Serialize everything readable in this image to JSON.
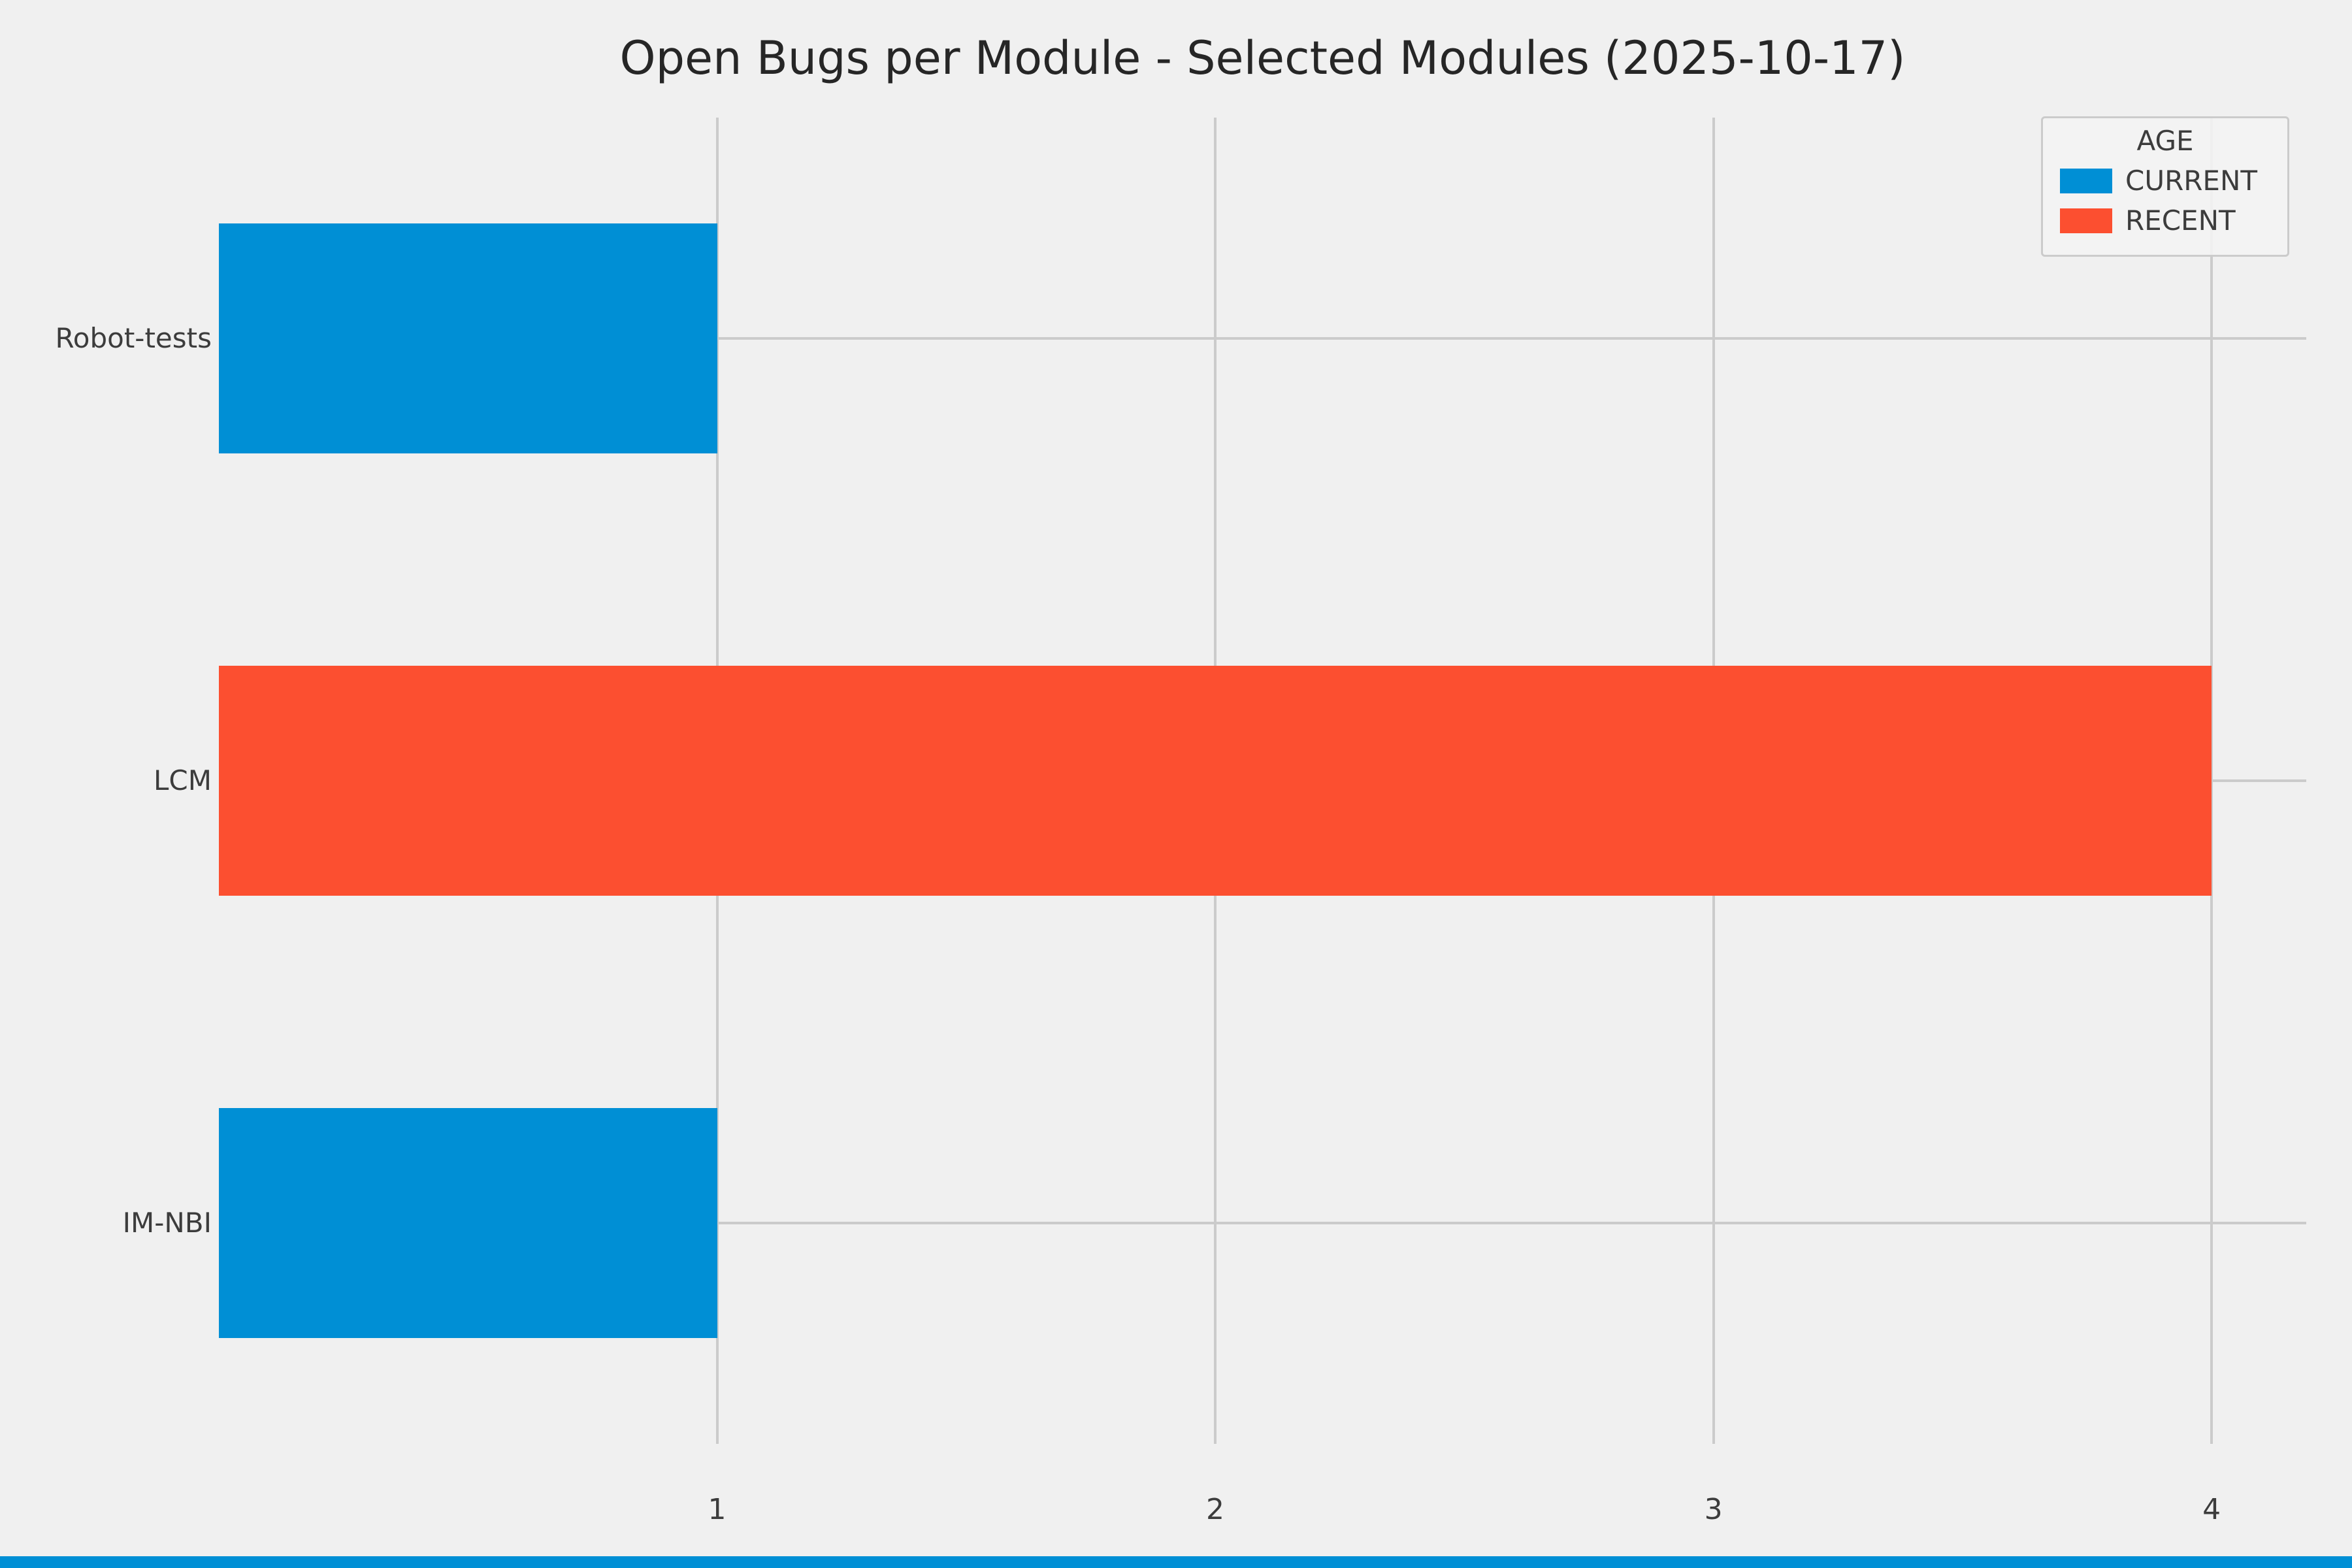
{
  "title": "Open Bugs per Module - Selected Modules (2025-10-17)",
  "colors": {
    "background": "#f0f0f0",
    "grid": "#cbcbcb",
    "text": "#3c3c3c",
    "title_text": "#262626",
    "current": "#008fd5",
    "recent": "#fc4f30",
    "bottom_strip": "#008fd5"
  },
  "chart_data": {
    "type": "bar",
    "orientation": "horizontal",
    "title": "Open Bugs per Module - Selected Modules (2025-10-17)",
    "categories": [
      "Robot-tests",
      "LCM",
      "IM-NBI"
    ],
    "bars": [
      {
        "category": "Robot-tests",
        "value": 1,
        "group": "CURRENT",
        "color": "#008fd5"
      },
      {
        "category": "LCM",
        "value": 4,
        "group": "RECENT",
        "color": "#fc4f30"
      },
      {
        "category": "IM-NBI",
        "value": 1,
        "group": "CURRENT",
        "color": "#008fd5"
      }
    ],
    "xlabel": "",
    "ylabel": "",
    "xlim": [
      0,
      4.19
    ],
    "xticks": [
      1,
      2,
      3,
      4
    ],
    "grid": true,
    "bar_height_fraction": 0.52,
    "legend": {
      "title": "AGE",
      "position": "top-right",
      "entries": [
        {
          "label": "CURRENT",
          "color": "#008fd5"
        },
        {
          "label": "RECENT",
          "color": "#fc4f30"
        }
      ]
    }
  }
}
